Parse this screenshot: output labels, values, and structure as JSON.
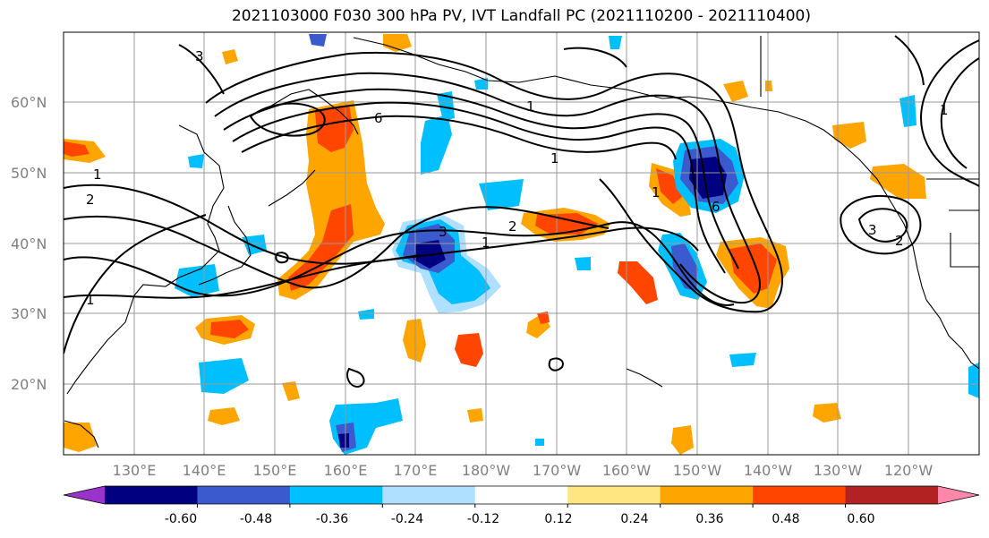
{
  "title": "2021103000 F030 300 hPa PV, IVT Landfall PC (2021110200 - 2021110400)",
  "latitude_labels": [
    "60°N",
    "50°N",
    "40°N",
    "30°N",
    "20°N"
  ],
  "longitude_labels": [
    "130°E",
    "140°E",
    "150°E",
    "160°E",
    "170°E",
    "180°W",
    "170°W",
    "160°W",
    "150°W",
    "140°W",
    "130°W",
    "120°W"
  ],
  "colorbar": {
    "tick_labels": [
      "-0.60",
      "-0.48",
      "-0.36",
      "-0.24",
      "-0.12",
      "0.12",
      "0.24",
      "0.36",
      "0.48",
      "0.60"
    ],
    "colors": [
      "#9933cc",
      "#000080",
      "#3a5acd",
      "#00bfff",
      "#b0e0ff",
      "#ffffff",
      "#ffe680",
      "#ffa500",
      "#ff4500",
      "#b22222",
      "#ff88aa"
    ]
  },
  "contour_labels": [
    "3",
    "1",
    "2",
    "1",
    "6",
    "1",
    "1",
    "2",
    "3",
    "1",
    "6",
    "1",
    "2",
    "3",
    "1"
  ],
  "shading_colors": {
    "pos1": "#ffe680",
    "pos2": "#ffa500",
    "pos3": "#ff4500",
    "pos4": "#b22222",
    "neg1": "#b0e0ff",
    "neg2": "#00bfff",
    "neg3": "#3a5acd",
    "neg4": "#000080"
  }
}
